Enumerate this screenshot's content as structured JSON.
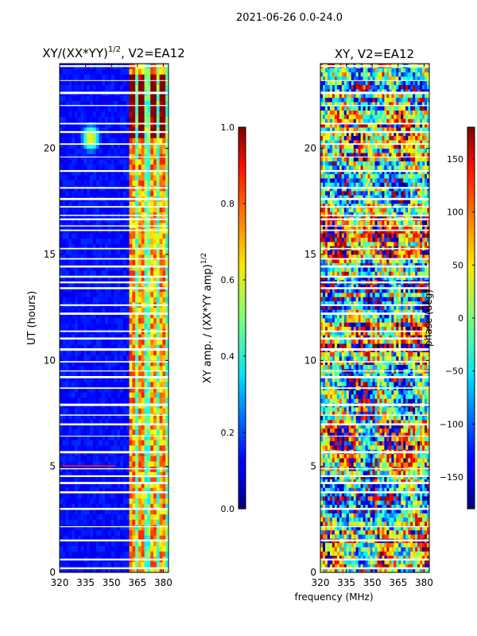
{
  "suptitle": "2021-06-26 0.0-24.0",
  "chart_data": [
    {
      "type": "heatmap",
      "title": "XY/(XX*YY)",
      "title_exponent": "1/2",
      "title_suffix": ", V2=EA12",
      "xlabel": "",
      "ylabel": "UT (hours)",
      "xlim": [
        320,
        383
      ],
      "ylim": [
        0,
        24
      ],
      "xticks": [
        "320",
        "335",
        "350",
        "365",
        "380"
      ],
      "yticks": [
        "0",
        "5",
        "10",
        "15",
        "20"
      ],
      "bright_channels_mhz": [
        362,
        367,
        374,
        379
      ],
      "hot_spot": {
        "x": 338,
        "y": 20.5
      },
      "colorbar": {
        "label": "XY amp. / (XX*YY amp)",
        "label_exponent": "1/2",
        "range": [
          0.0,
          1.0
        ],
        "ticks": [
          "0.0",
          "0.2",
          "0.4",
          "0.6",
          "0.8",
          "1.0"
        ]
      }
    },
    {
      "type": "heatmap",
      "title": "XY, V2=EA12",
      "xlabel": "frequency (MHz)",
      "ylabel": "",
      "xlim": [
        320,
        383
      ],
      "ylim": [
        0,
        24
      ],
      "xticks": [
        "320",
        "335",
        "350",
        "365",
        "380"
      ],
      "yticks": [
        "0",
        "5",
        "10",
        "15",
        "20"
      ],
      "colorbar": {
        "label": "phase (deg)",
        "range": [
          -180,
          180
        ],
        "ticks": [
          "−150",
          "−100",
          "−50",
          "0",
          "50",
          "100",
          "150"
        ]
      }
    }
  ]
}
